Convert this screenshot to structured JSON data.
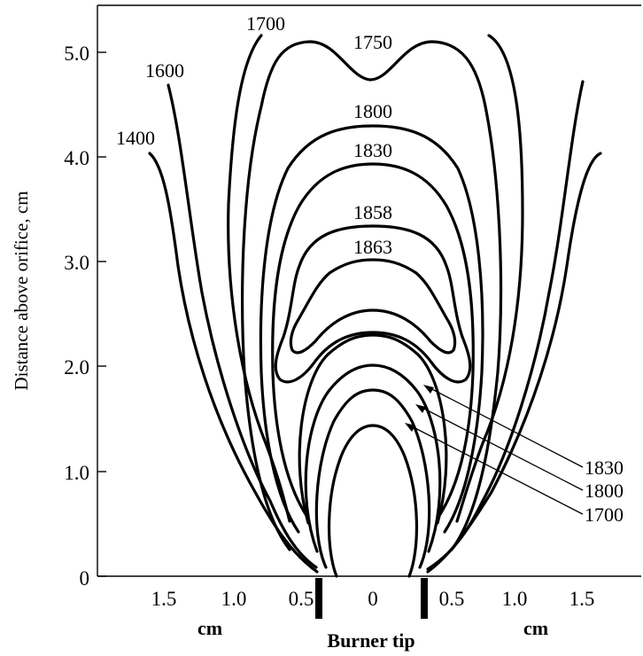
{
  "axes": {
    "ylabel": "Distance above orifice, cm",
    "yticks": [
      "0",
      "1.0",
      "2.0",
      "3.0",
      "4.0",
      "5.0"
    ],
    "xticks": [
      "1.5",
      "1.0",
      "0.5",
      "0",
      "0.5",
      "1.0",
      "1.5"
    ],
    "left_unit": "cm",
    "right_unit": "cm",
    "xlabel": "Burner tip"
  },
  "isotherms": {
    "l1400": "1400",
    "l1600": "1600",
    "l1700": "1700",
    "l1750": "1750",
    "l1800": "1800",
    "l1830": "1830",
    "l1858": "1858",
    "l1863": "1863"
  },
  "inner_callouts": [
    "1830",
    "1800",
    "1700"
  ]
}
